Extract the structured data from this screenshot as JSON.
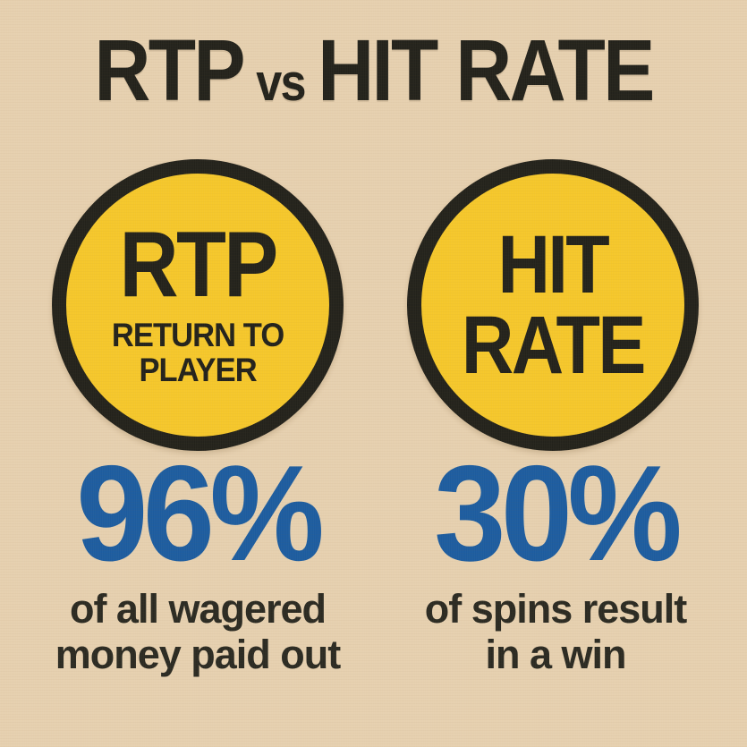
{
  "title": {
    "left": "RTP",
    "vs": "vs",
    "right": "HIT RATE"
  },
  "colors": {
    "background": "#e6d0af",
    "circle_fill": "#f5c72b",
    "ink": "#23221b",
    "accent_blue": "#1d5c9f"
  },
  "columns": [
    {
      "id": "rtp",
      "circle_main_lines": [
        "RTP"
      ],
      "circle_sub_lines": [
        "RETURN TO",
        "PLAYER"
      ],
      "stat_value": "96%",
      "caption_lines": [
        "of all wagered",
        "money paid out"
      ]
    },
    {
      "id": "hit_rate",
      "circle_main_lines": [
        "HIT",
        "RATE"
      ],
      "circle_sub_lines": [],
      "stat_value": "30%",
      "caption_lines": [
        "of spins result",
        "in a win"
      ]
    }
  ]
}
